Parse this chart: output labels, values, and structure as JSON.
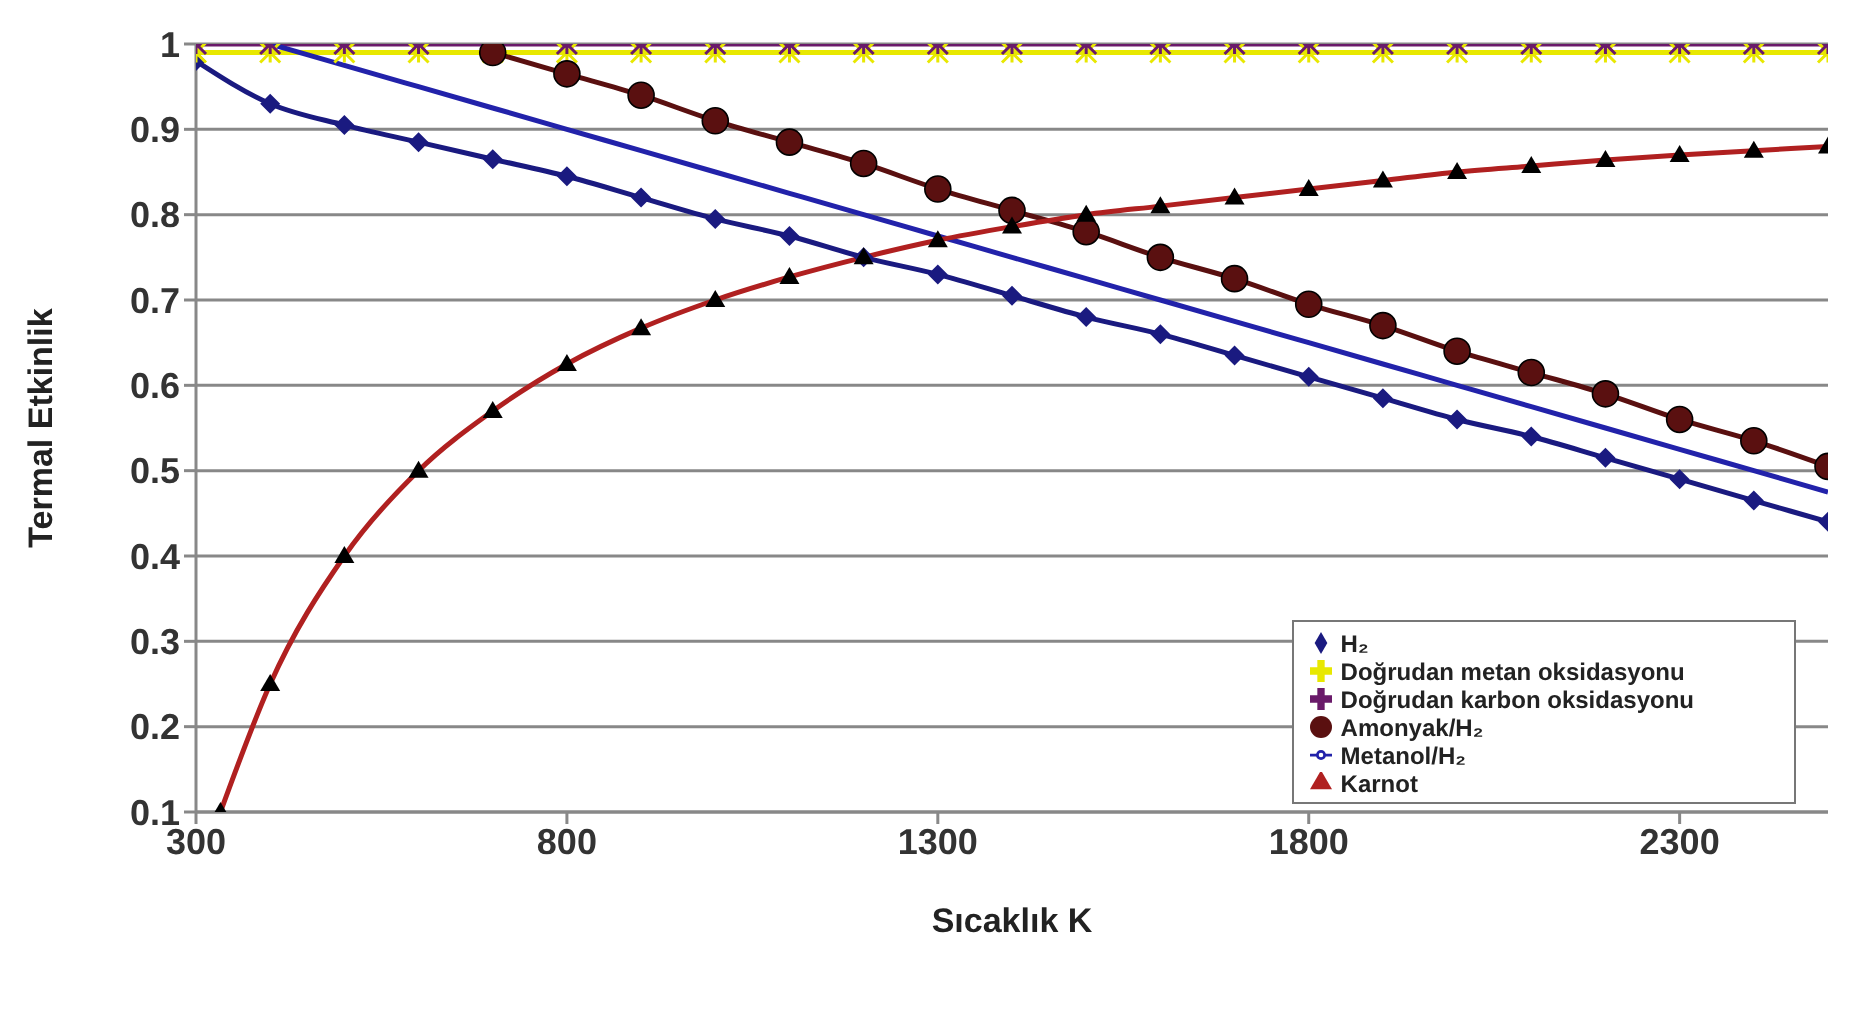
{
  "chart_data": {
    "type": "line",
    "xlabel": "Sıcaklık K",
    "ylabel": "Termal Etkinlik",
    "xlim": [
      300,
      2500
    ],
    "xticks": [
      300,
      800,
      1300,
      1800,
      2300
    ],
    "ylim": [
      0.1,
      1
    ],
    "yticks": [
      0.1,
      0.2,
      0.3,
      0.4,
      0.5,
      0.6,
      0.7,
      0.8,
      0.9,
      1
    ],
    "grid": "y",
    "legend": "bottom right",
    "line_style": "solid",
    "x": [
      300,
      400,
      500,
      600,
      700,
      800,
      900,
      1000,
      1100,
      1200,
      1300,
      1400,
      1500,
      1600,
      1700,
      1800,
      1900,
      2000,
      2100,
      2200,
      2300,
      2400,
      2500
    ],
    "series": [
      {
        "name": "H₂",
        "color": "#1a1a80",
        "marker": "diamond",
        "values": [
          0.98,
          0.93,
          0.905,
          0.885,
          0.865,
          0.845,
          0.82,
          0.795,
          0.775,
          0.75,
          0.73,
          0.705,
          0.68,
          0.66,
          0.635,
          0.61,
          0.585,
          0.56,
          0.54,
          0.515,
          0.49,
          0.465,
          0.44
        ]
      },
      {
        "name": "Doğrudan metan oksidasyonu",
        "color": "#e8e800",
        "marker": "cross",
        "values": [
          0.99,
          0.99,
          0.99,
          0.99,
          0.99,
          0.99,
          0.99,
          0.99,
          0.99,
          0.99,
          0.99,
          0.99,
          0.99,
          0.99,
          0.99,
          0.99,
          0.99,
          0.99,
          0.99,
          0.99,
          0.99,
          0.99,
          0.99
        ]
      },
      {
        "name": "Doğrudan karbon oksidasyonu",
        "color": "#6a1a6a",
        "marker": "cross",
        "values": [
          1,
          1,
          1,
          1,
          1,
          1,
          1,
          1,
          1,
          1,
          1,
          1,
          1,
          1,
          1,
          1,
          1,
          1,
          1,
          1,
          1,
          1,
          1
        ]
      },
      {
        "name": "Amonyak/H₂",
        "color": "#5a1010",
        "marker": "circle",
        "values": [
          null,
          null,
          null,
          null,
          0.99,
          0.965,
          0.94,
          0.91,
          0.885,
          0.86,
          0.83,
          0.805,
          0.78,
          0.75,
          0.725,
          0.695,
          0.67,
          0.64,
          0.615,
          0.59,
          0.56,
          0.535,
          0.505
        ]
      },
      {
        "name": "Metanol/H₂",
        "color": "#2222aa",
        "marker": "none",
        "values": [
          null,
          1,
          0.975,
          0.95,
          0.925,
          0.9,
          0.875,
          0.85,
          0.825,
          0.8,
          0.775,
          0.75,
          0.725,
          0.7,
          0.675,
          0.65,
          0.625,
          0.6,
          0.575,
          0.55,
          0.525,
          0.5,
          0.475
        ]
      },
      {
        "name": "Karnot",
        "color": "#b02020",
        "marker": "triangle",
        "x": [
          333,
          400,
          500,
          600,
          700,
          800,
          900,
          1000,
          1100,
          1200,
          1300,
          1400,
          1500,
          1600,
          1700,
          1800,
          1900,
          2000,
          2100,
          2200,
          2300,
          2400,
          2500
        ],
        "values": [
          0.1,
          0.25,
          0.4,
          0.5,
          0.57,
          0.625,
          0.667,
          0.7,
          0.727,
          0.75,
          0.77,
          0.786,
          0.8,
          0.81,
          0.82,
          0.83,
          0.84,
          0.85,
          0.857,
          0.864,
          0.87,
          0.875,
          0.88
        ]
      }
    ]
  }
}
